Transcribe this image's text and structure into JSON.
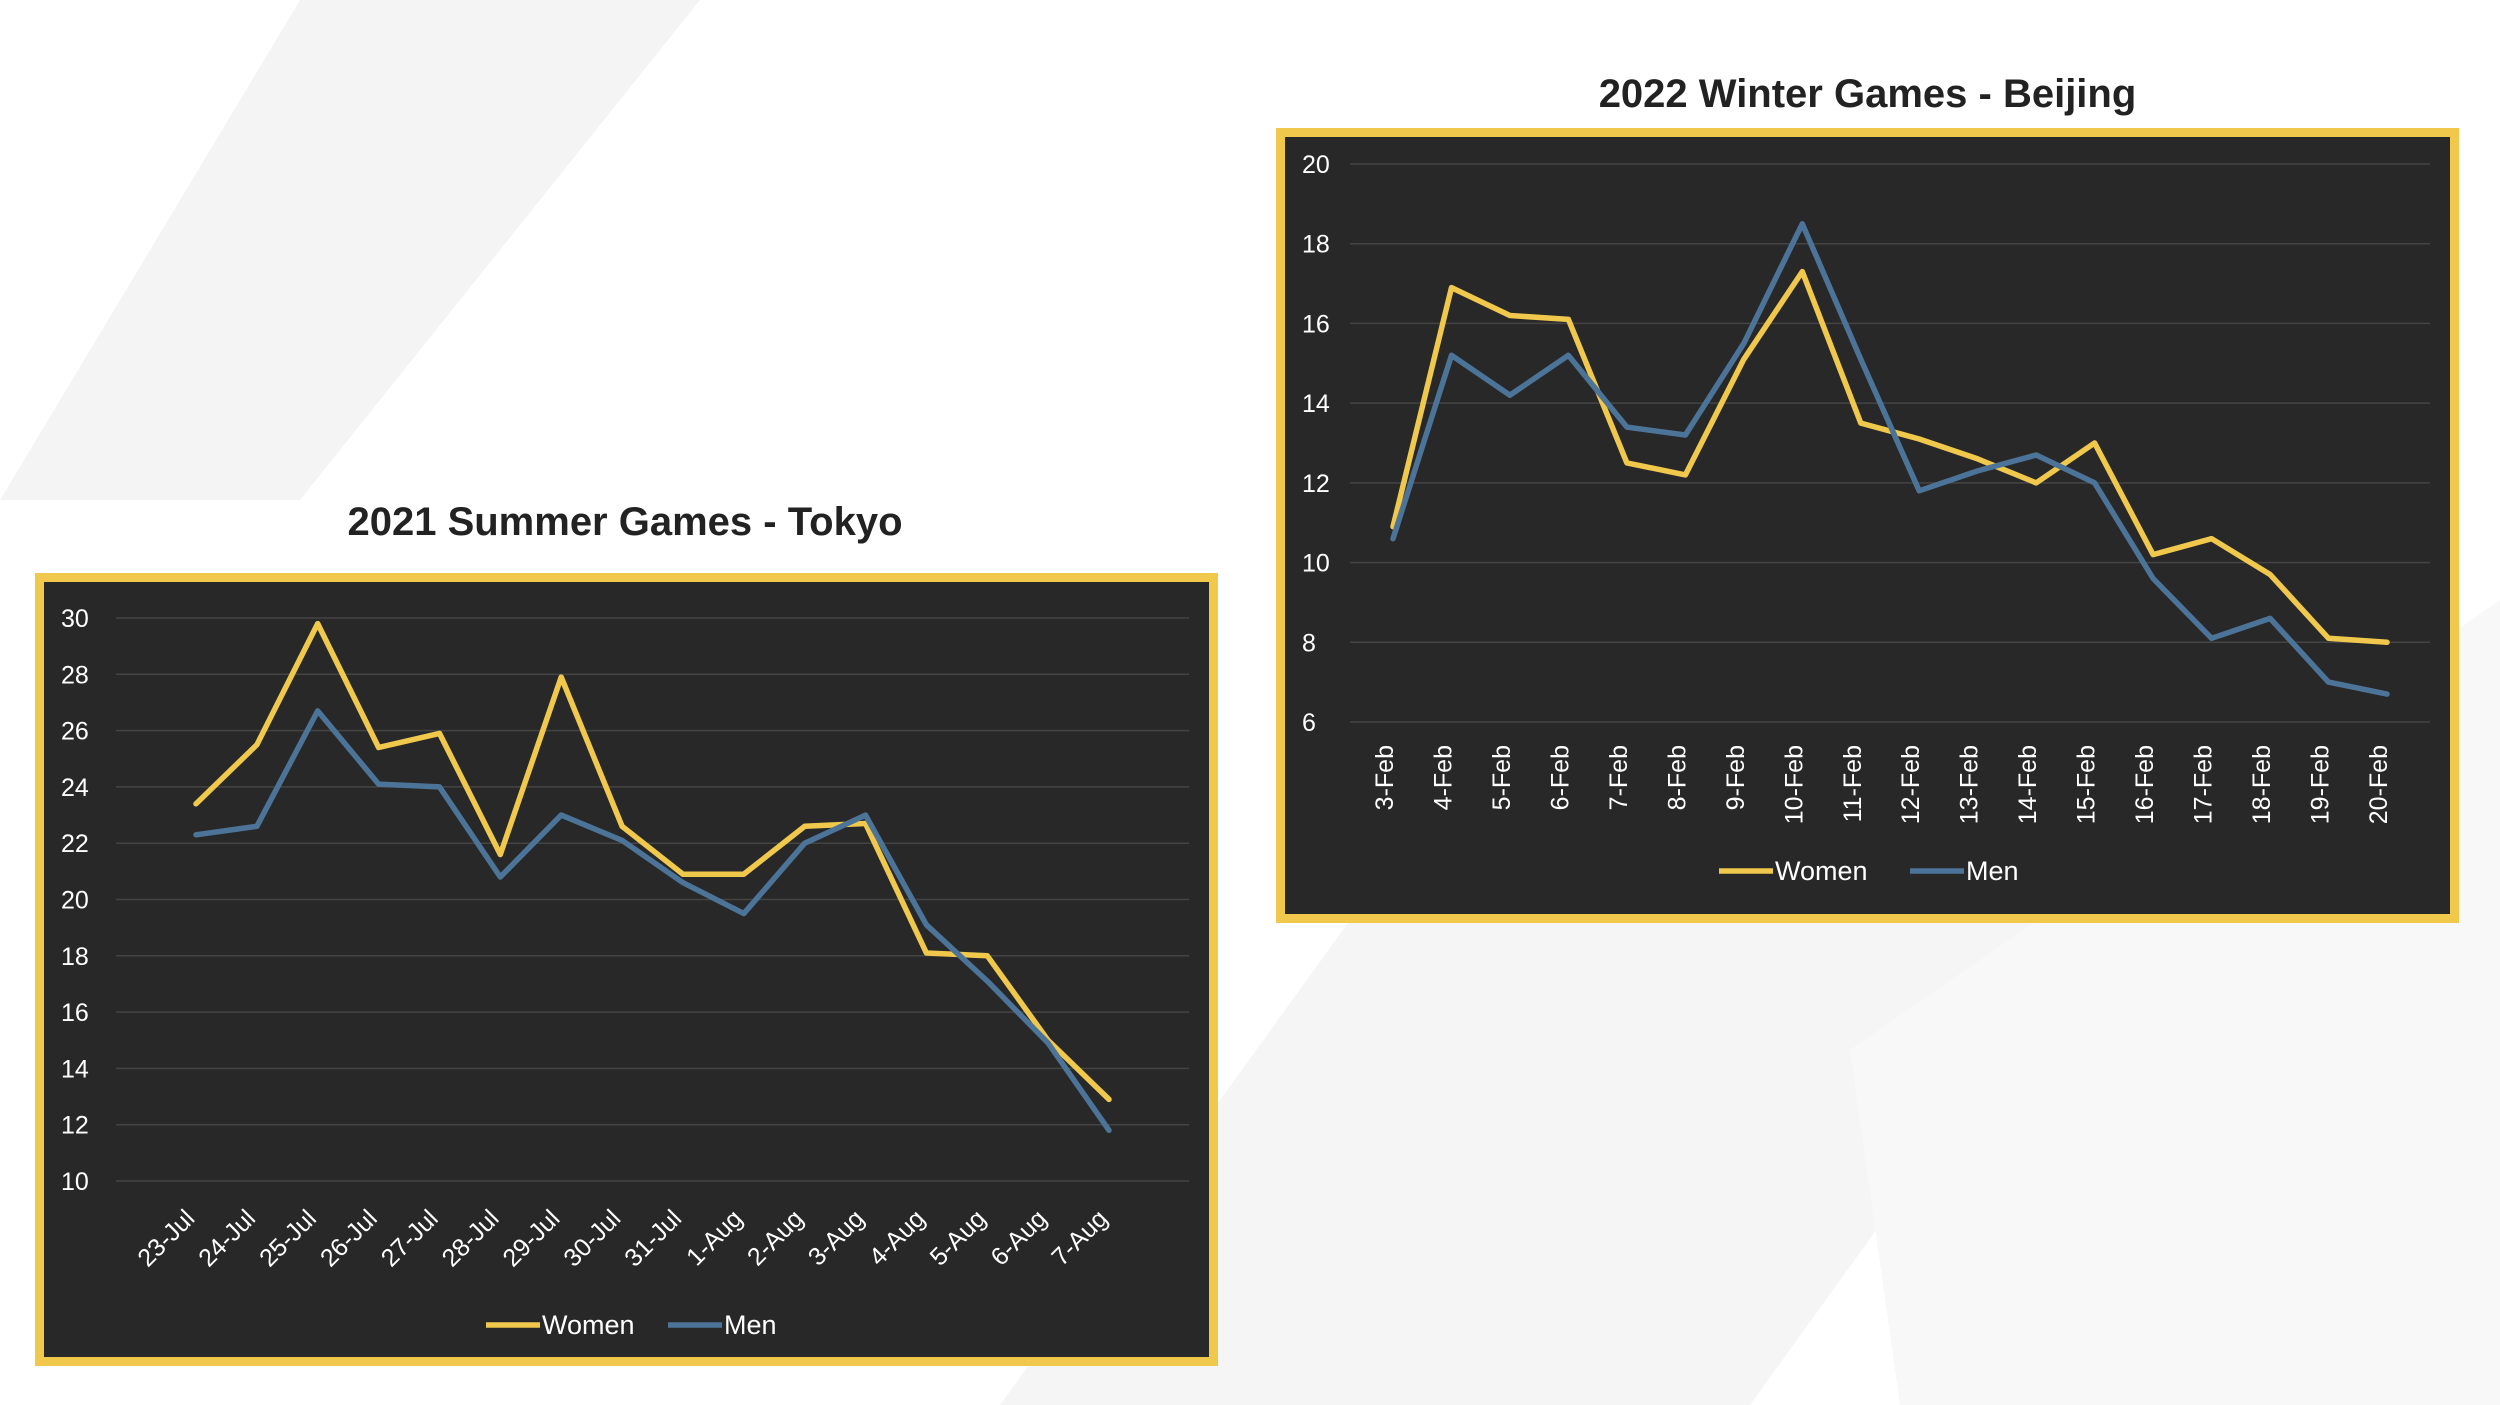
{
  "colors": {
    "women": "#f0c84c",
    "men": "#4c7499",
    "panel": "#282828",
    "frame": "#f0c84c",
    "grid": "#444444"
  },
  "chart_data": [
    {
      "type": "line",
      "title": "2021 Summer Games - Tokyo",
      "categories": [
        "23-Jul",
        "24-Jul",
        "25-Jul",
        "26-Jul",
        "27-Jul",
        "28-Jul",
        "29-Jul",
        "30-Jul",
        "31-Jul",
        "1-Aug",
        "2-Aug",
        "3-Aug",
        "4-Aug",
        "5-Aug",
        "6-Aug",
        "7-Aug"
      ],
      "yticks": [
        10,
        12,
        14,
        16,
        18,
        20,
        22,
        24,
        26,
        28,
        30
      ],
      "ylim": [
        10,
        30
      ],
      "series": [
        {
          "name": "Women",
          "color": "#f0c84c",
          "values": [
            23.4,
            25.5,
            29.8,
            25.4,
            25.9,
            21.6,
            27.9,
            22.6,
            20.9,
            20.9,
            22.6,
            22.7,
            18.1,
            18.0,
            15.0,
            12.9
          ]
        },
        {
          "name": "Men",
          "color": "#4c7499",
          "values": [
            22.3,
            22.6,
            26.7,
            24.1,
            24.0,
            20.8,
            23.0,
            22.1,
            20.6,
            19.5,
            22.0,
            23.0,
            19.1,
            17.1,
            14.9,
            11.8
          ]
        }
      ],
      "legend": [
        "Women",
        "Men"
      ],
      "legend_position": "bottom"
    },
    {
      "type": "line",
      "title": "2022 Winter Games - Beijing",
      "categories": [
        "3-Feb",
        "4-Feb",
        "5-Feb",
        "6-Feb",
        "7-Feb",
        "8-Feb",
        "9-Feb",
        "10-Feb",
        "11-Feb",
        "12-Feb",
        "13-Feb",
        "14-Feb",
        "15-Feb",
        "16-Feb",
        "17-Feb",
        "18-Feb",
        "19-Feb",
        "20-Feb"
      ],
      "yticks": [
        6,
        8,
        10,
        12,
        14,
        16,
        18,
        20
      ],
      "ylim": [
        6,
        20
      ],
      "series": [
        {
          "name": "Women",
          "color": "#f0c84c",
          "values": [
            10.9,
            16.9,
            16.2,
            16.1,
            12.5,
            12.2,
            15.1,
            17.3,
            13.5,
            13.1,
            12.6,
            12.0,
            13.0,
            10.2,
            10.6,
            9.7,
            8.1,
            8.0
          ]
        },
        {
          "name": "Men",
          "color": "#4c7499",
          "values": [
            10.6,
            15.2,
            14.2,
            15.2,
            13.4,
            13.2,
            15.5,
            18.5,
            15.1,
            11.8,
            12.3,
            12.7,
            12.0,
            9.6,
            8.1,
            8.6,
            7.0,
            6.7
          ]
        }
      ],
      "legend": [
        "Women",
        "Men"
      ],
      "legend_position": "bottom"
    }
  ]
}
